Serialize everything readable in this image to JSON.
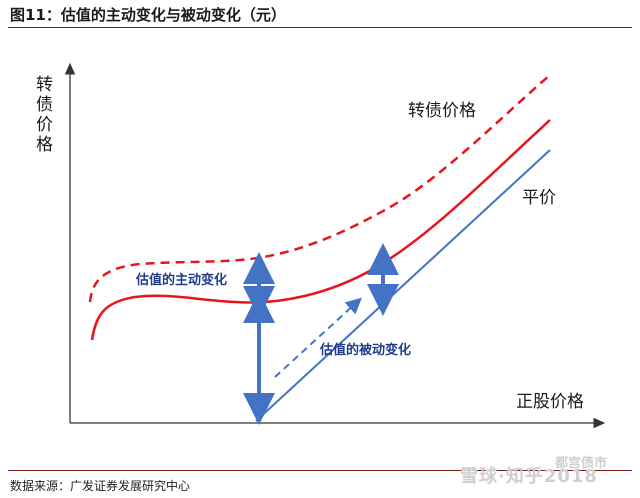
{
  "figure": {
    "title": "图11：估值的主动变化与被动变化（元）",
    "source": "数据来源：广发证券发展研究中心",
    "watermark": "雪球·知乎2018",
    "watermark_tag": "都宫债市"
  },
  "diagram": {
    "y_axis_label": [
      "转",
      "债",
      "价",
      "格"
    ],
    "x_axis_label": "正股价格",
    "curve_dashed_label": "转债价格",
    "parity_label": "平价",
    "active_change_label": "估值的主动变化",
    "passive_change_label": "估值的被动变化",
    "colors": {
      "red_curve": "#e8141c",
      "parity_line": "#4472c4",
      "arrow": "#4472c4",
      "arrow_label": "#1f3d8a",
      "axis": "#333333"
    }
  }
}
